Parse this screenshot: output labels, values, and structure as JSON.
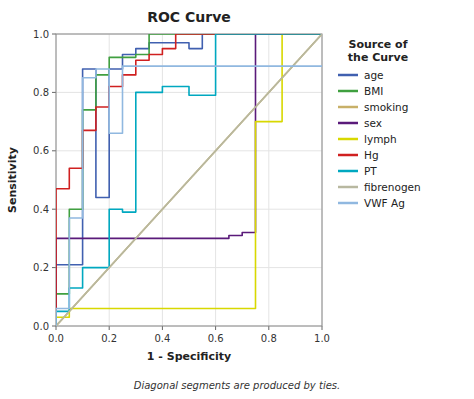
{
  "chart_data": {
    "type": "line",
    "title": "ROC Curve",
    "xlabel": "1 - Specificity",
    "ylabel": "Sensitivity",
    "footnote": "Diagonal segments are produced by ties.",
    "legend_title": "Source of\nthe Curve",
    "legend": "right",
    "grid": true,
    "xlim": [
      0.0,
      1.0
    ],
    "ylim": [
      0.0,
      1.0
    ],
    "xticks": [
      {
        "value": 0.0,
        "label": "0.0"
      },
      0.2,
      0.4,
      0.6,
      0.8,
      {
        "value": 1.0,
        "label": "1.0"
      }
    ],
    "yticks": [
      {
        "value": 0.0,
        "label": "0.0"
      },
      0.2,
      0.4,
      0.6,
      0.8,
      {
        "value": 1.0,
        "label": "1.0"
      }
    ],
    "series": [
      {
        "color": "#a8a890",
        "x": [
          0.0,
          1.0
        ],
        "values": [
          0.0,
          1.0
        ]
      },
      {
        "name": "age",
        "color": "#4060b0",
        "x": [
          0.0,
          0.0,
          0.1,
          0.1,
          0.15,
          0.15,
          0.2,
          0.2,
          0.25,
          0.25,
          0.3,
          0.3,
          0.35,
          0.35,
          0.5,
          0.5,
          0.55,
          0.55,
          1.0
        ],
        "values": [
          0.0,
          0.21,
          0.21,
          0.88,
          0.88,
          0.44,
          0.44,
          0.88,
          0.88,
          0.93,
          0.93,
          0.95,
          0.95,
          0.97,
          0.97,
          0.95,
          0.95,
          1.0,
          1.0
        ]
      },
      {
        "name": "BMI",
        "color": "#40a040",
        "x": [
          0.0,
          0.0,
          0.05,
          0.05,
          0.1,
          0.1,
          0.15,
          0.15,
          0.2,
          0.2,
          0.3,
          0.3,
          0.35,
          0.35,
          1.0
        ],
        "values": [
          0.0,
          0.11,
          0.11,
          0.4,
          0.4,
          0.74,
          0.74,
          0.86,
          0.86,
          0.92,
          0.92,
          0.93,
          0.93,
          1.0,
          1.0
        ]
      },
      {
        "name": "smoking",
        "color": "#c8b068",
        "x": [
          0.0,
          1.0
        ],
        "values": [
          0.0,
          1.0
        ]
      },
      {
        "name": "sex",
        "color": "#5a1a7a",
        "x": [
          0.0,
          0.0,
          0.65,
          0.65,
          0.7,
          0.7,
          0.75,
          0.75,
          0.85,
          0.85,
          1.0
        ],
        "values": [
          0.0,
          0.3,
          0.3,
          0.31,
          0.31,
          0.32,
          0.32,
          1.0,
          1.0,
          1.0,
          1.0
        ]
      },
      {
        "name": "lymph",
        "color": "#d8d800",
        "x": [
          0.0,
          0.0,
          0.05,
          0.05,
          0.75,
          0.75,
          0.85,
          0.85,
          1.0
        ],
        "values": [
          0.0,
          0.03,
          0.03,
          0.06,
          0.06,
          0.7,
          0.7,
          1.0,
          1.0
        ]
      },
      {
        "name": "Hg",
        "color": "#d02020",
        "x": [
          0.0,
          0.0,
          0.05,
          0.05,
          0.1,
          0.1,
          0.15,
          0.15,
          0.2,
          0.2,
          0.25,
          0.25,
          0.3,
          0.3,
          0.35,
          0.35,
          0.4,
          0.4,
          0.45,
          0.45,
          1.0
        ],
        "values": [
          0.0,
          0.47,
          0.47,
          0.54,
          0.54,
          0.67,
          0.67,
          0.75,
          0.75,
          0.82,
          0.82,
          0.86,
          0.86,
          0.91,
          0.91,
          0.93,
          0.93,
          0.95,
          0.95,
          1.0,
          1.0
        ]
      },
      {
        "name": "PT",
        "color": "#00a8c0",
        "x": [
          0.0,
          0.0,
          0.05,
          0.05,
          0.1,
          0.1,
          0.2,
          0.2,
          0.25,
          0.25,
          0.3,
          0.3,
          0.4,
          0.4,
          0.5,
          0.5,
          0.6,
          0.6,
          0.65,
          0.65,
          1.0
        ],
        "values": [
          0.0,
          0.05,
          0.05,
          0.13,
          0.13,
          0.2,
          0.2,
          0.4,
          0.4,
          0.39,
          0.39,
          0.8,
          0.8,
          0.82,
          0.82,
          0.79,
          0.79,
          1.0,
          1.0,
          1.0,
          1.0
        ]
      },
      {
        "name": "fibrenogen",
        "color": "#b8b8a0",
        "x": [
          0.0,
          1.0
        ],
        "values": [
          0.0,
          1.0
        ]
      },
      {
        "name": "VWF Ag",
        "color": "#90b8e0",
        "x": [
          0.0,
          0.0,
          0.05,
          0.05,
          0.1,
          0.1,
          0.15,
          0.15,
          0.2,
          0.2,
          0.25,
          0.25,
          1.0
        ],
        "values": [
          0.0,
          0.06,
          0.06,
          0.37,
          0.37,
          0.85,
          0.85,
          0.88,
          0.88,
          0.66,
          0.66,
          0.89,
          0.89
        ]
      }
    ]
  }
}
